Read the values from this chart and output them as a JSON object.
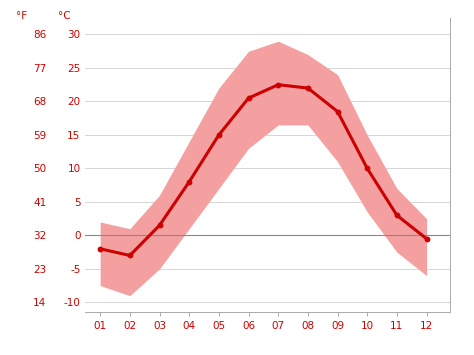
{
  "months": [
    1,
    2,
    3,
    4,
    5,
    6,
    7,
    8,
    9,
    10,
    11,
    12
  ],
  "month_labels": [
    "01",
    "02",
    "03",
    "04",
    "05",
    "06",
    "07",
    "08",
    "09",
    "10",
    "11",
    "12"
  ],
  "mean_temp_c": [
    -2.0,
    -3.0,
    1.5,
    8.0,
    15.0,
    20.5,
    22.5,
    22.0,
    18.5,
    10.0,
    3.0,
    -0.5
  ],
  "max_temp_c": [
    2.0,
    1.0,
    6.0,
    14.0,
    22.0,
    27.5,
    29.0,
    27.0,
    24.0,
    15.0,
    7.0,
    2.5
  ],
  "min_temp_c": [
    -7.5,
    -9.0,
    -5.0,
    1.0,
    7.0,
    13.0,
    16.5,
    16.5,
    11.0,
    3.5,
    -2.5,
    -6.0
  ],
  "line_color": "#cc0000",
  "band_color": "#f4a0a0",
  "zero_line_color": "#888888",
  "yticks_c": [
    -10,
    -5,
    0,
    5,
    10,
    15,
    20,
    25,
    30
  ],
  "yticks_f": [
    14,
    23,
    32,
    41,
    50,
    59,
    68,
    77,
    86
  ],
  "ylim_c": [
    -11.5,
    32.5
  ],
  "xlim": [
    0.5,
    12.8
  ],
  "background_color": "#ffffff",
  "grid_color": "#d0d0d0",
  "tick_color": "#cc0000",
  "label_f": "°F",
  "label_c": "°C",
  "tick_fontsize": 7.5,
  "label_fontsize": 7.5
}
